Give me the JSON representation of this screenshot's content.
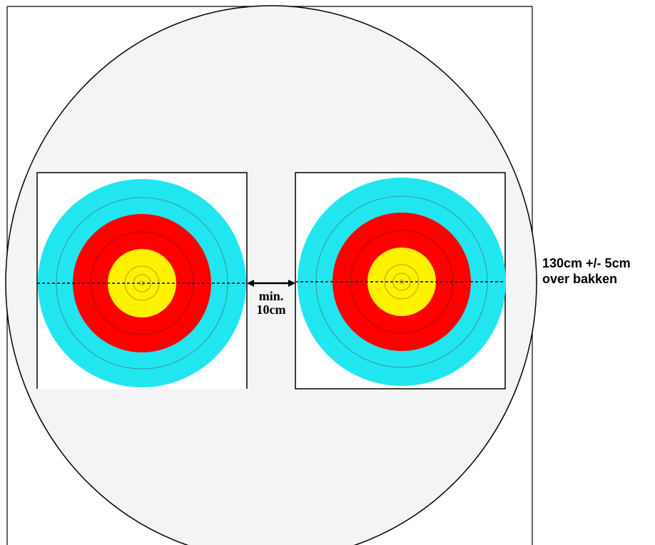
{
  "gap_label": {
    "line1": "min.",
    "line2": "10cm"
  },
  "height_label": {
    "line1": "130cm +/- 5cm",
    "line2": "over bakken"
  },
  "colors": {
    "boss_background": "#f4f4f4",
    "outline": "#000000",
    "face_paper": "#ffffff",
    "ring_blue": "#22e6ef",
    "ring_red": "#ff0000",
    "ring_gold": "#fff200",
    "scoring_line": "#555555"
  },
  "target_faces": [
    {
      "name": "left-target-face"
    },
    {
      "name": "right-target-face"
    }
  ]
}
